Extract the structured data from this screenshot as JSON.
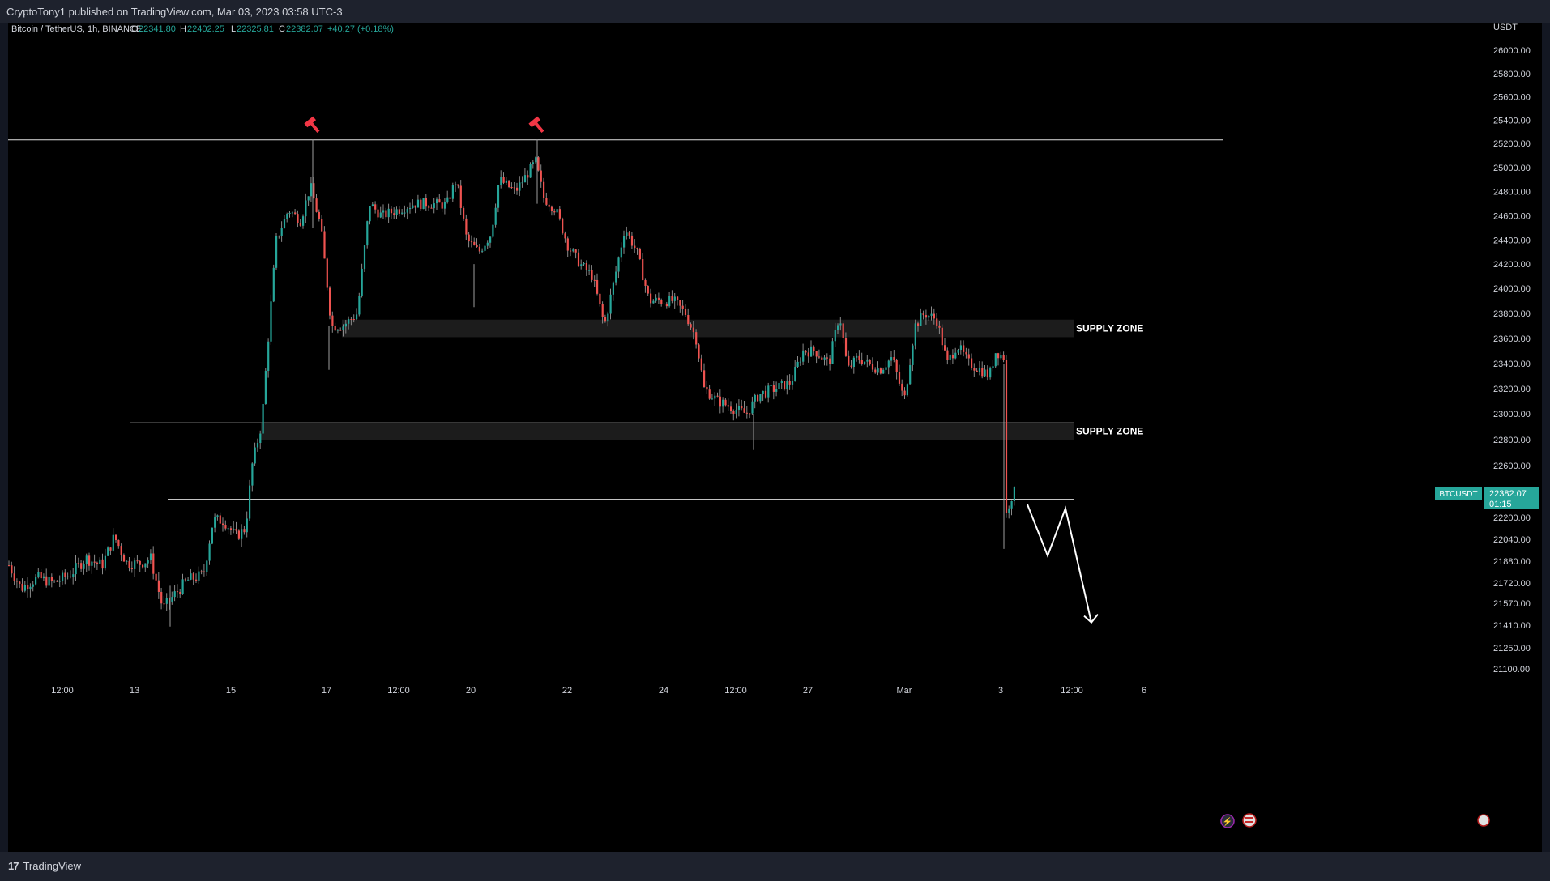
{
  "header": {
    "published": "CryptoTony1 published on TradingView.com, Mar 03, 2023 03:58 UTC-3"
  },
  "footer": {
    "brand": "TradingView"
  },
  "chart_data": {
    "type": "candlestick",
    "symbol_title": "Bitcoin / TetherUS, 1h, BINANCE",
    "ohlc": {
      "o": "22341.80",
      "h": "22402.25",
      "l": "22325.81",
      "c": "22382.07",
      "chg": "+40.27 (+0.18%)"
    },
    "currency": "USDT",
    "y_ticks": [
      26000,
      25800,
      25600,
      25400,
      25200,
      25000,
      24800,
      24600,
      24400,
      24200,
      24000,
      23800,
      23600,
      23400,
      23200,
      23000,
      22800,
      22600,
      22400,
      22200,
      22040,
      21880,
      21720,
      21570,
      21410,
      21250,
      21100
    ],
    "x_ticks": [
      "12:00",
      "13",
      "15",
      "17",
      "12:00",
      "20",
      "22",
      "24",
      "12:00",
      "27",
      "Mar",
      "3",
      "12:00",
      "6"
    ],
    "price_label": {
      "ticker": "BTCUSDT",
      "price": "22382.07",
      "countdown": "01:15"
    },
    "path": [
      [
        0,
        21850
      ],
      [
        15,
        21680
      ],
      [
        35,
        21760
      ],
      [
        55,
        21720
      ],
      [
        75,
        21780
      ],
      [
        95,
        21900
      ],
      [
        115,
        21850
      ],
      [
        130,
        22060
      ],
      [
        145,
        21870
      ],
      [
        160,
        21860
      ],
      [
        175,
        21900
      ],
      [
        190,
        21530
      ],
      [
        205,
        21640
      ],
      [
        220,
        21740
      ],
      [
        240,
        21780
      ],
      [
        252,
        22180
      ],
      [
        265,
        22180
      ],
      [
        280,
        22060
      ],
      [
        292,
        22120
      ],
      [
        300,
        22600
      ],
      [
        312,
        22930
      ],
      [
        320,
        23600
      ],
      [
        330,
        24400
      ],
      [
        345,
        24650
      ],
      [
        360,
        24560
      ],
      [
        372,
        24850
      ],
      [
        385,
        24500
      ],
      [
        398,
        23700
      ],
      [
        412,
        23700
      ],
      [
        430,
        23800
      ],
      [
        445,
        24700
      ],
      [
        460,
        24600
      ],
      [
        480,
        24650
      ],
      [
        500,
        24700
      ],
      [
        520,
        24700
      ],
      [
        540,
        24690
      ],
      [
        552,
        24900
      ],
      [
        565,
        24400
      ],
      [
        580,
        24300
      ],
      [
        595,
        24450
      ],
      [
        605,
        24900
      ],
      [
        625,
        24800
      ],
      [
        640,
        24950
      ],
      [
        650,
        25050
      ],
      [
        660,
        24750
      ],
      [
        675,
        24650
      ],
      [
        690,
        24350
      ],
      [
        705,
        24200
      ],
      [
        720,
        24100
      ],
      [
        735,
        23700
      ],
      [
        748,
        24100
      ],
      [
        760,
        24500
      ],
      [
        775,
        24300
      ],
      [
        790,
        23900
      ],
      [
        805,
        23900
      ],
      [
        820,
        23900
      ],
      [
        835,
        23800
      ],
      [
        848,
        23600
      ],
      [
        858,
        23200
      ],
      [
        875,
        23100
      ],
      [
        892,
        23050
      ],
      [
        910,
        23000
      ],
      [
        925,
        23150
      ],
      [
        945,
        23200
      ],
      [
        965,
        23250
      ],
      [
        980,
        23500
      ],
      [
        995,
        23500
      ],
      [
        1012,
        23400
      ],
      [
        1025,
        23800
      ],
      [
        1035,
        23350
      ],
      [
        1048,
        23450
      ],
      [
        1060,
        23400
      ],
      [
        1075,
        23350
      ],
      [
        1090,
        23450
      ],
      [
        1105,
        23100
      ],
      [
        1118,
        23700
      ],
      [
        1130,
        23800
      ],
      [
        1145,
        23750
      ],
      [
        1158,
        23400
      ],
      [
        1170,
        23550
      ],
      [
        1185,
        23400
      ],
      [
        1200,
        23350
      ],
      [
        1210,
        23300
      ],
      [
        1218,
        23500
      ],
      [
        1228,
        23450
      ],
      [
        1230,
        22200
      ],
      [
        1236,
        22350
      ],
      [
        1242,
        22400
      ]
    ],
    "wicks": [
      {
        "x": 376,
        "high": 25230,
        "low": 24500
      },
      {
        "x": 653,
        "high": 25230,
        "low": 24700
      },
      {
        "x": 396,
        "high": 23700,
        "low": 23350
      },
      {
        "x": 200,
        "high": 21700,
        "low": 21400
      },
      {
        "x": 575,
        "high": 24200,
        "low": 23850
      },
      {
        "x": 920,
        "high": 23000,
        "low": 22720
      },
      {
        "x": 1229,
        "high": 23400,
        "low": 21970
      }
    ],
    "horizontal_lines": [
      {
        "price": 25230,
        "x_start": 0,
        "x_end": 1500
      },
      {
        "price": 22930,
        "x_start": 150,
        "x_end": 1315
      },
      {
        "price": 22340,
        "x_start": 197,
        "x_end": 1315
      }
    ],
    "zones": [
      {
        "label": "SUPPLY ZONE",
        "top": 23750,
        "bottom": 23610,
        "x_start": 412,
        "x_end": 1315
      },
      {
        "label": "SUPPLY ZONE",
        "top": 22930,
        "bottom": 22800,
        "x_start": 312,
        "x_end": 1315
      }
    ],
    "top_markers": [
      376,
      653
    ],
    "projection": [
      [
        1258,
        22300
      ],
      [
        1283,
        21920
      ],
      [
        1305,
        22270
      ],
      [
        1337,
        21430
      ]
    ]
  }
}
